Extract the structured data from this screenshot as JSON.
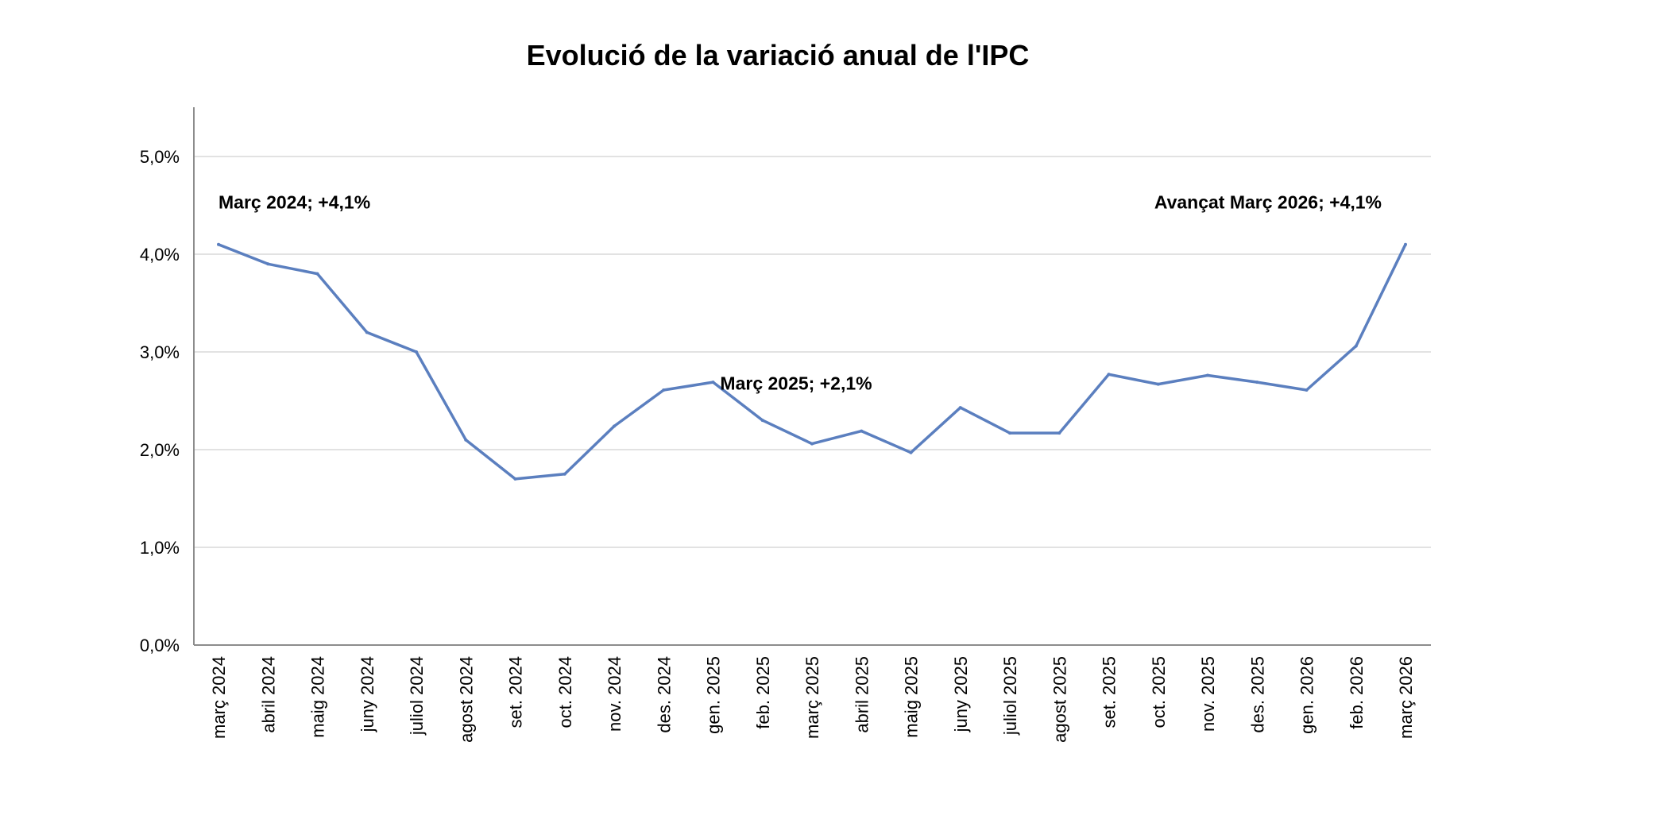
{
  "chart_data": {
    "type": "line",
    "title": "Evolució de la variació anual de l'IPC",
    "xlabel": "",
    "ylabel": "",
    "ylim": [
      0,
      5
    ],
    "yticks": [
      "0,0%",
      "1,0%",
      "2,0%",
      "3,0%",
      "4,0%",
      "5,0%"
    ],
    "grid": true,
    "line_color": "#5b7fbf",
    "categories": [
      "març 2024",
      "abril 2024",
      "maig 2024",
      "juny 2024",
      "juliol 2024",
      "agost 2024",
      "set. 2024",
      "oct. 2024",
      "nov. 2024",
      "des. 2024",
      "gen. 2025",
      "feb. 2025",
      "març 2025",
      "abril 2025",
      "maig 2025",
      "juny 2025",
      "juliol 2025",
      "agost 2025",
      "set. 2025",
      "oct. 2025",
      "nov. 2025",
      "des. 2025",
      "gen. 2026",
      "feb. 2026",
      "març 2026"
    ],
    "values": [
      4.1,
      3.9,
      3.8,
      3.2,
      3.0,
      2.1,
      1.7,
      1.75,
      2.24,
      2.61,
      2.69,
      2.3,
      2.06,
      2.19,
      1.97,
      2.43,
      2.17,
      2.17,
      2.77,
      2.67,
      2.76,
      2.69,
      2.61,
      3.06,
      4.1
    ],
    "annotations": [
      {
        "index": 0,
        "text": "Març 2024; +4,1%"
      },
      {
        "index": 12,
        "text": "Març 2025;  +2,1%"
      },
      {
        "index": 24,
        "text": "Avançat Març 2026; +4,1%"
      }
    ]
  }
}
